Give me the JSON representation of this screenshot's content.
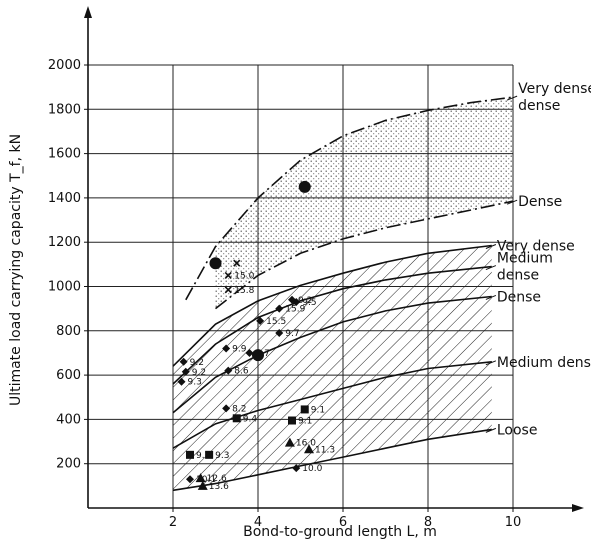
{
  "chart_data": {
    "type": "line",
    "xlabel": "Bond-to-ground length L, m",
    "ylabel": "Ultimate load carrying capacity T_f, kN",
    "xlim": [
      0,
      10
    ],
    "ylim": [
      0,
      2000
    ],
    "x_ticks": [
      "2",
      "4",
      "6",
      "8",
      "10"
    ],
    "y_ticks": [
      "200",
      "400",
      "600",
      "800",
      "1000",
      "1200",
      "1400",
      "1600",
      "1800",
      "2000"
    ],
    "grid": true,
    "curves": [
      {
        "label": "Very dense",
        "label_line2": "dense",
        "style": "dash-dot",
        "x": [
          2.3,
          3,
          4,
          5,
          6,
          7,
          8,
          9,
          10
        ],
        "y": [
          940,
          1180,
          1400,
          1570,
          1680,
          1750,
          1795,
          1830,
          1855
        ]
      },
      {
        "label": "Dense",
        "style": "dash-dot",
        "x": [
          3,
          4,
          5,
          6,
          7,
          8,
          9,
          10
        ],
        "y": [
          900,
          1050,
          1150,
          1215,
          1265,
          1305,
          1345,
          1385
        ]
      },
      {
        "label": "Very dense",
        "style": "solid",
        "x": [
          2,
          3,
          4,
          5,
          6,
          7,
          8,
          9.5
        ],
        "y": [
          640,
          830,
          935,
          1005,
          1060,
          1110,
          1150,
          1185
        ]
      },
      {
        "label": "Medium",
        "label_line2": "dense",
        "style": "solid",
        "x": [
          2,
          3,
          4,
          5,
          6,
          7,
          8,
          9.5
        ],
        "y": [
          560,
          740,
          860,
          935,
          990,
          1030,
          1060,
          1090
        ]
      },
      {
        "label": "Dense",
        "style": "solid",
        "x": [
          2,
          3,
          4,
          5,
          6,
          7,
          8,
          9.5
        ],
        "y": [
          430,
          590,
          690,
          770,
          840,
          890,
          925,
          955
        ]
      },
      {
        "label": "Medium dense",
        "style": "solid",
        "x": [
          2,
          3,
          4,
          5,
          6,
          7,
          8,
          9.5
        ],
        "y": [
          270,
          380,
          440,
          490,
          540,
          590,
          630,
          660
        ]
      },
      {
        "label": "Loose",
        "style": "solid",
        "x": [
          2,
          3,
          4,
          5,
          6,
          7,
          8,
          9.5
        ],
        "y": [
          80,
          110,
          150,
          190,
          230,
          270,
          310,
          355
        ]
      }
    ],
    "points": [
      {
        "marker": "big-dot",
        "x": 3.0,
        "y": 1105,
        "label": ""
      },
      {
        "marker": "big-dot",
        "x": 5.1,
        "y": 1450,
        "label": ""
      },
      {
        "marker": "big-dot",
        "x": 4.0,
        "y": 690,
        "label": ""
      },
      {
        "marker": "cross",
        "x": 3.5,
        "y": 1105,
        "label": ""
      },
      {
        "marker": "cross",
        "x": 3.3,
        "y": 1050,
        "label": "15.0"
      },
      {
        "marker": "cross",
        "x": 3.3,
        "y": 985,
        "label": "15.8"
      },
      {
        "marker": "diamond",
        "x": 4.8,
        "y": 940,
        "label": "9.2"
      },
      {
        "marker": "diamond",
        "x": 4.9,
        "y": 930,
        "label": "9.5"
      },
      {
        "marker": "diamond",
        "x": 4.5,
        "y": 900,
        "label": "15.9"
      },
      {
        "marker": "diamond",
        "x": 4.05,
        "y": 845,
        "label": "15.5"
      },
      {
        "marker": "diamond",
        "x": 4.5,
        "y": 790,
        "label": "9.7"
      },
      {
        "marker": "diamond",
        "x": 3.25,
        "y": 720,
        "label": "9.9"
      },
      {
        "marker": "diamond",
        "x": 3.8,
        "y": 700,
        "label": "9.7"
      },
      {
        "marker": "diamond",
        "x": 3.3,
        "y": 620,
        "label": "8.6"
      },
      {
        "marker": "diamond",
        "x": 3.25,
        "y": 450,
        "label": "8.2"
      },
      {
        "marker": "diamond",
        "x": 2.25,
        "y": 660,
        "label": "9.2"
      },
      {
        "marker": "diamond",
        "x": 2.3,
        "y": 615,
        "label": "9.2"
      },
      {
        "marker": "diamond",
        "x": 2.2,
        "y": 570,
        "label": "9.3"
      },
      {
        "marker": "square",
        "x": 3.5,
        "y": 405,
        "label": "9.4"
      },
      {
        "marker": "square",
        "x": 2.4,
        "y": 240,
        "label": "9.2"
      },
      {
        "marker": "square",
        "x": 2.85,
        "y": 240,
        "label": "9.3"
      },
      {
        "marker": "square",
        "x": 4.8,
        "y": 395,
        "label": "9.1"
      },
      {
        "marker": "square",
        "x": 5.1,
        "y": 445,
        "label": "9.1"
      },
      {
        "marker": "triangle",
        "x": 4.75,
        "y": 295,
        "label": "16.0"
      },
      {
        "marker": "triangle",
        "x": 5.2,
        "y": 265,
        "label": "11.3"
      },
      {
        "marker": "triangle",
        "x": 2.65,
        "y": 135,
        "label": "12.6"
      },
      {
        "marker": "triangle",
        "x": 2.7,
        "y": 100,
        "label": "13.6"
      },
      {
        "marker": "diamond",
        "x": 2.4,
        "y": 130,
        "label": "10.1"
      },
      {
        "marker": "diamond",
        "x": 4.9,
        "y": 180,
        "label": "10.0"
      }
    ],
    "bands": [
      {
        "fill": "stipple",
        "between": [
          "Very dense",
          "Dense"
        ]
      },
      {
        "fill": "hatch",
        "between": [
          "Very dense (lower group)",
          "Loose"
        ]
      }
    ]
  }
}
